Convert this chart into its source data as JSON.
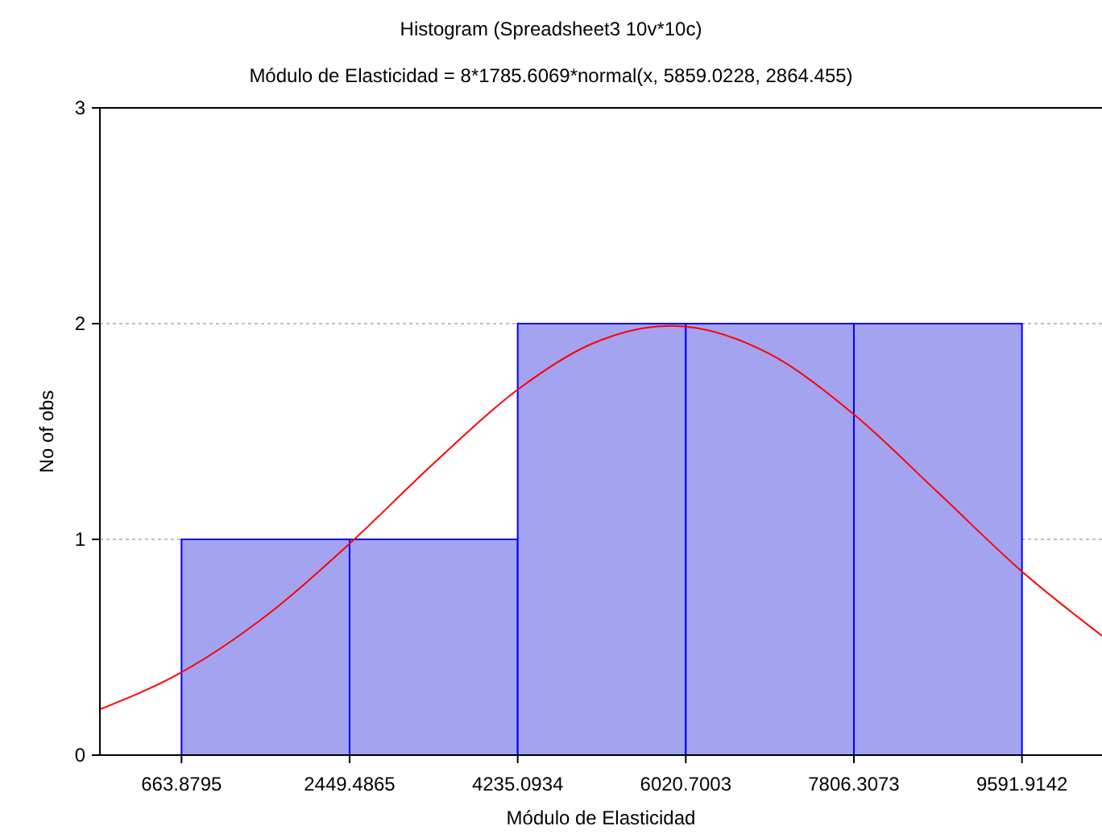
{
  "chart_data": {
    "type": "histogram",
    "title": "Histogram (Spreadsheet3 10v*10c)",
    "subtitle": "Módulo de Elasticidad = 8*1785.6069*normal(x, 5859.0228, 2864.455)",
    "xlabel": "Módulo de Elasticidad",
    "ylabel": "No of obs",
    "bins": [
      663.8795,
      2449.4865,
      4235.0934,
      6020.7003,
      7806.3073,
      9591.9142
    ],
    "values": [
      1,
      1,
      2,
      2,
      2
    ],
    "color": "#a3a3f0",
    "series": [
      {
        "type": "line",
        "color": "#ff0000",
        "x": [
          -203,
          663.8795,
          1500,
          2449.4865,
          3342,
          4235.0934,
          5000,
          5859,
          6020.7003,
          6900,
          7806.3073,
          8700,
          9591.9142,
          10442
        ],
        "values": [
          0.212,
          0.384,
          0.625,
          0.98,
          1.352,
          1.694,
          1.902,
          1.99,
          1.986,
          1.862,
          1.579,
          1.217,
          0.851,
          0.553
        ]
      }
    ],
    "xlim": [
      -203,
      10442
    ],
    "ylim": [
      0,
      3
    ],
    "xticks": [
      663.8795,
      2449.4865,
      4235.0934,
      6020.7003,
      7806.3073,
      9591.9142
    ],
    "yticks": [
      0,
      1,
      2,
      3
    ],
    "grid": "y"
  }
}
